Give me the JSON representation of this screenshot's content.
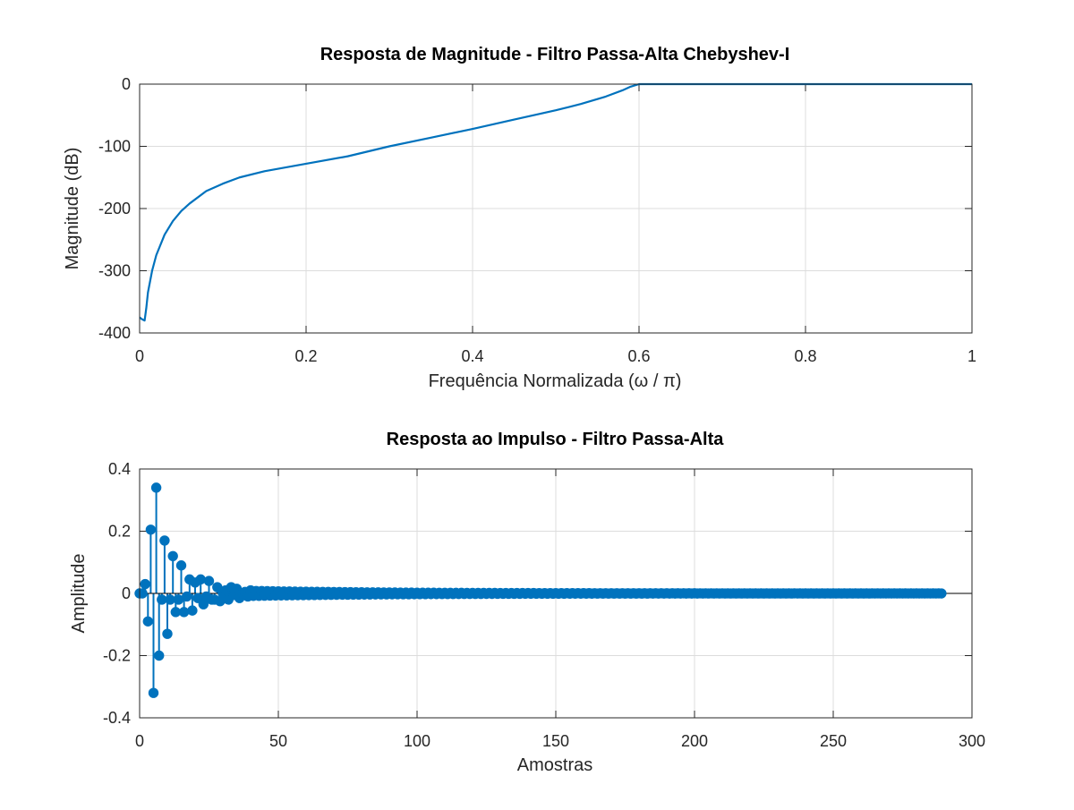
{
  "chart_data": [
    {
      "type": "line",
      "title": "Resposta de Magnitude - Filtro Passa-Alta Chebyshev-I",
      "xlabel": "Frequência Normalizada (ω / π)",
      "ylabel": "Magnitude (dB)",
      "xlim": [
        0,
        1
      ],
      "ylim": [
        -400,
        0
      ],
      "xticks": [
        0,
        0.2,
        0.4,
        0.6,
        0.8,
        1
      ],
      "xtick_labels": [
        "0",
        "0.2",
        "0.4",
        "0.6",
        "0.8",
        "1"
      ],
      "yticks": [
        -400,
        -300,
        -200,
        -100,
        0
      ],
      "ytick_labels": [
        "-400",
        "-300",
        "-200",
        "-100",
        "0"
      ],
      "grid": true,
      "color": "#0072BD",
      "series": [
        {
          "x": [
            0,
            0.003,
            0.006,
            0.008,
            0.01,
            0.015,
            0.02,
            0.03,
            0.04,
            0.05,
            0.06,
            0.08,
            0.1,
            0.12,
            0.15,
            0.2,
            0.25,
            0.3,
            0.35,
            0.4,
            0.45,
            0.5,
            0.53,
            0.56,
            0.58,
            0.59,
            0.6,
            0.7,
            0.8,
            0.9,
            1.0
          ],
          "y": [
            -375,
            -378,
            -380,
            -360,
            -335,
            -300,
            -275,
            -242,
            -220,
            -204,
            -192,
            -172,
            -160,
            -150,
            -140,
            -128,
            -116,
            -100,
            -86,
            -72,
            -57,
            -42,
            -32,
            -20,
            -10,
            -4,
            0,
            0,
            0,
            0,
            0
          ]
        }
      ]
    },
    {
      "type": "stem",
      "title": "Resposta ao Impulso - Filtro Passa-Alta",
      "xlabel": "Amostras",
      "ylabel": "Amplitude",
      "xlim": [
        0,
        300
      ],
      "ylim": [
        -0.4,
        0.4
      ],
      "xticks": [
        0,
        50,
        100,
        150,
        200,
        250,
        300
      ],
      "xtick_labels": [
        "0",
        "50",
        "100",
        "150",
        "200",
        "250",
        "300"
      ],
      "yticks": [
        -0.4,
        -0.2,
        0,
        0.2,
        0.4
      ],
      "ytick_labels": [
        "-0.4",
        "-0.2",
        "0",
        "0.2",
        "0.4"
      ],
      "grid": true,
      "color": "#0072BD",
      "x": [
        0,
        1,
        2,
        3,
        4,
        5,
        6,
        7,
        8,
        9,
        10,
        11,
        12,
        13,
        14,
        15,
        16,
        17,
        18,
        19,
        20,
        21,
        22,
        23,
        24,
        25,
        26,
        27,
        28,
        29,
        30,
        31,
        32,
        33,
        34,
        35,
        36,
        37,
        38,
        39,
        40
      ],
      "y": [
        0.0,
        0.0,
        0.03,
        -0.09,
        0.205,
        -0.32,
        0.34,
        -0.2,
        -0.02,
        0.17,
        -0.13,
        -0.02,
        0.12,
        -0.06,
        -0.02,
        0.09,
        -0.06,
        -0.01,
        0.045,
        -0.055,
        0.035,
        -0.015,
        0.045,
        -0.035,
        -0.01,
        0.04,
        -0.02,
        -0.02,
        0.02,
        -0.025,
        0.0,
        0.01,
        -0.02,
        0.02,
        -0.005,
        0.015,
        -0.015,
        0.0,
        0.005,
        -0.01,
        0.01
      ],
      "tail_x_start": 41,
      "tail_x_end": 289,
      "tail_amplitude": 0.008,
      "tail_decay": 0.02
    }
  ]
}
